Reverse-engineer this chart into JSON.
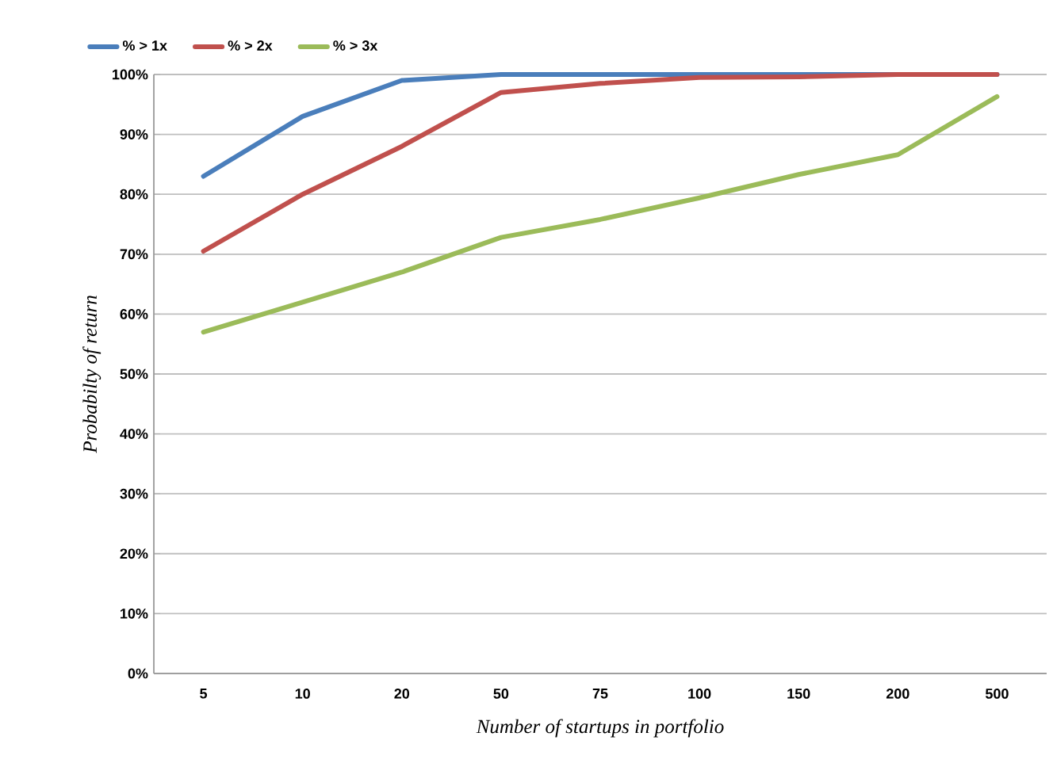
{
  "chart_data": {
    "type": "line",
    "xlabel": "Number of startups in portfolio",
    "ylabel": "Probabilty of return",
    "categories": [
      "5",
      "10",
      "20",
      "50",
      "75",
      "100",
      "150",
      "200",
      "500"
    ],
    "series": [
      {
        "name": "% > 1x",
        "color": "#4a7ebb",
        "values": [
          83,
          93,
          99,
          100,
          100,
          100,
          100,
          null,
          100
        ]
      },
      {
        "name": "% > 2x",
        "color": "#c0504d",
        "values": [
          70.5,
          80,
          88,
          97,
          98.5,
          99.5,
          99.6,
          100,
          100
        ]
      },
      {
        "name": "% > 3x",
        "color": "#9bbb59",
        "values": [
          57,
          62,
          67,
          72.8,
          75.8,
          79.4,
          83.3,
          86.6,
          96.3
        ]
      }
    ],
    "ylim": [
      0,
      100
    ],
    "yticks": [
      {
        "value": 0,
        "label": "0%"
      },
      {
        "value": 10,
        "label": "10%"
      },
      {
        "value": 20,
        "label": "20%"
      },
      {
        "value": 30,
        "label": "30%"
      },
      {
        "value": 40,
        "label": "40%"
      },
      {
        "value": 50,
        "label": "50%"
      },
      {
        "value": 60,
        "label": "60%"
      },
      {
        "value": 70,
        "label": "70%"
      },
      {
        "value": 80,
        "label": "80%"
      },
      {
        "value": 90,
        "label": "90%"
      },
      {
        "value": 100,
        "label": "100%"
      }
    ],
    "grid": "y",
    "legend": "top left",
    "marker": "none",
    "line_style": "solid"
  }
}
